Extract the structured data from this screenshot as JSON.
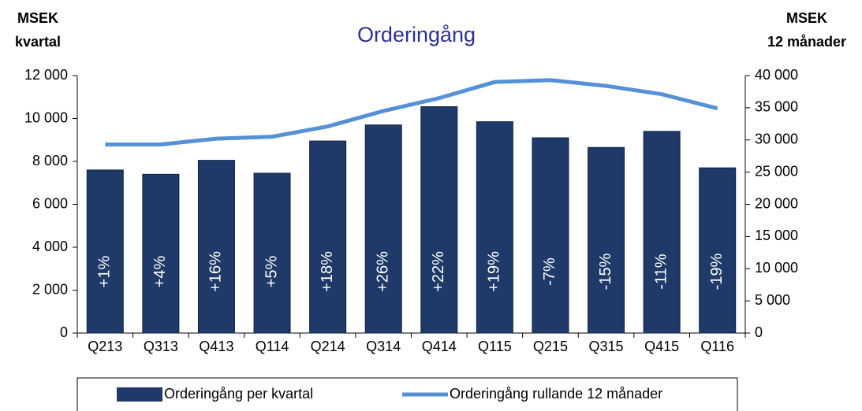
{
  "chart_data": {
    "type": "bar_line",
    "title": "Orderingång",
    "ylabel": [
      "MSEK",
      "kvartal"
    ],
    "y2label": [
      "MSEK",
      "12 månader"
    ],
    "categories": [
      "Q213",
      "Q313",
      "Q413",
      "Q114",
      "Q214",
      "Q314",
      "Q414",
      "Q115",
      "Q215",
      "Q315",
      "Q415",
      "Q116"
    ],
    "series": [
      {
        "name": "Orderingång per kvartal",
        "color": "#1f3a68",
        "kind": "bar",
        "values": [
          7600,
          7400,
          8050,
          7450,
          8950,
          9700,
          10550,
          9850,
          9100,
          8650,
          9400,
          7700
        ]
      },
      {
        "name": "Orderingång rullande 12 månader",
        "color": "#5591d6",
        "kind": "line",
        "axis": "y2",
        "values": [
          29300,
          29300,
          30200,
          30500,
          32100,
          34500,
          36500,
          39000,
          39300,
          38400,
          37100,
          34900
        ]
      }
    ],
    "growth_labels": [
      "+1%",
      "+4%",
      "+16%",
      "+5%",
      "+18%",
      "+26%",
      "+22%",
      "+19%",
      "-7%",
      "-15%",
      "-11%",
      "-19%"
    ],
    "ylim": [
      0,
      12000
    ],
    "yticks": [
      0,
      {
        "value": 2000,
        "label": "2 000"
      },
      {
        "value": 4000,
        "label": "4 000"
      },
      {
        "value": 6000,
        "label": "6 000"
      },
      {
        "value": 8000,
        "label": "8 000"
      },
      {
        "value": 10000,
        "label": "10 000"
      },
      {
        "value": 12000,
        "label": "12 000"
      }
    ],
    "y2lim": [
      0,
      40000
    ],
    "y2ticks": [
      0,
      {
        "value": 5000,
        "label": "5 000"
      },
      {
        "value": 10000,
        "label": "10 000"
      },
      {
        "value": 15000,
        "label": "15 000"
      },
      {
        "value": 20000,
        "label": "20 000"
      },
      {
        "value": 25000,
        "label": "25 000"
      },
      {
        "value": 30000,
        "label": "30 000"
      },
      {
        "value": 35000,
        "label": "35 000"
      },
      {
        "value": 40000,
        "label": "40 000"
      }
    ],
    "legend": "bottom"
  }
}
